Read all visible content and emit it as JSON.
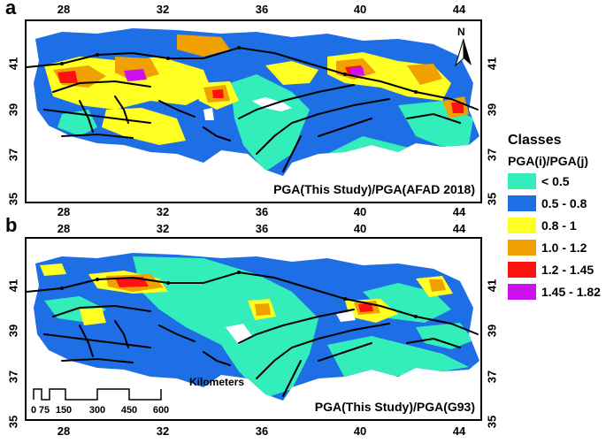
{
  "panels": {
    "a": {
      "letter": "a",
      "caption": "PGA(This Study)/PGA(AFAD 2018)"
    },
    "b": {
      "letter": "b",
      "caption": "PGA(This Study)/PGA(G93)"
    }
  },
  "axes": {
    "lon_ticks": [
      "28",
      "32",
      "36",
      "40",
      "44"
    ],
    "lat_ticks": [
      "41",
      "39",
      "37",
      "35"
    ]
  },
  "north_arrow": {
    "label": "N",
    "icon": "north-arrow-icon"
  },
  "scale_bar": {
    "unit": "Kilometers",
    "values": [
      "0",
      "75",
      "150",
      "300",
      "450",
      "600"
    ]
  },
  "legend": {
    "title": "Classes",
    "subtitle": "PGA(i)/PGA(j)",
    "items": [
      {
        "label": "< 0.5",
        "color": "#33eebb"
      },
      {
        "label": "0.5 - 0.8",
        "color": "#1e6ee6"
      },
      {
        "label": "0.8 - 1",
        "color": "#ffff22"
      },
      {
        "label": "1.0 - 1.2",
        "color": "#f0a000"
      },
      {
        "label": "1.2 - 1.45",
        "color": "#ff1111"
      },
      {
        "label": "1.45 - 1.82",
        "color": "#cc11ee"
      }
    ]
  }
}
